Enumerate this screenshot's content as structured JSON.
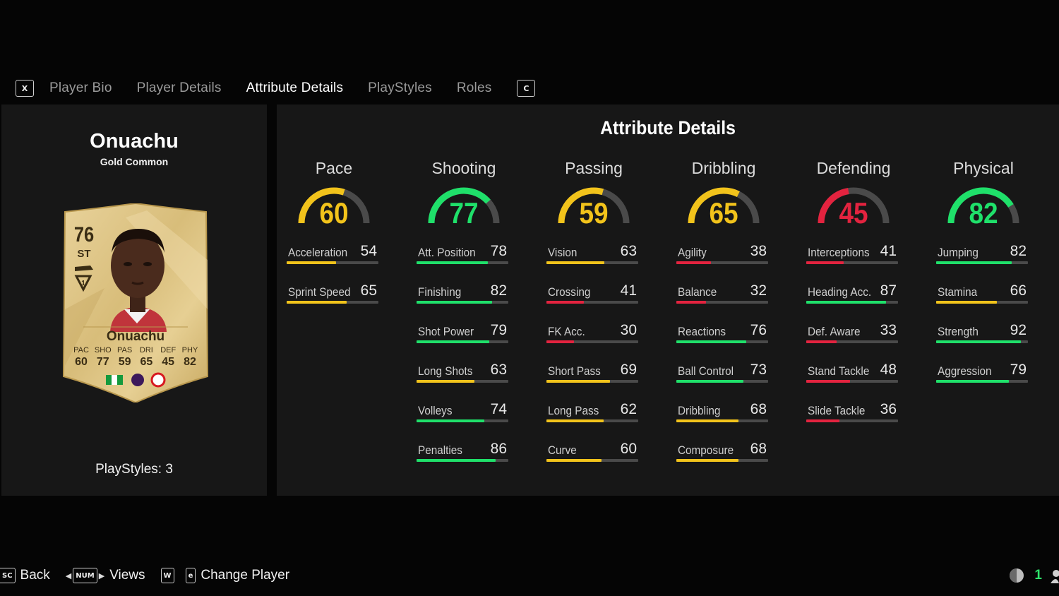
{
  "tabs": {
    "prev_key": "X",
    "next_key": "C",
    "items": [
      {
        "label": "Player Bio"
      },
      {
        "label": "Player Details"
      },
      {
        "label": "Attribute Details",
        "active": true
      },
      {
        "label": "PlayStyles"
      },
      {
        "label": "Roles"
      }
    ]
  },
  "player": {
    "name": "Onuachu",
    "rarity": "Gold Common",
    "playstyles_label": "PlayStyles: 3"
  },
  "card": {
    "rating": "76",
    "position": "ST",
    "name": "Onuachu",
    "stats": [
      {
        "label": "PAC",
        "value": "60"
      },
      {
        "label": "SHO",
        "value": "77"
      },
      {
        "label": "PAS",
        "value": "59"
      },
      {
        "label": "DRI",
        "value": "65"
      },
      {
        "label": "DEF",
        "value": "45"
      },
      {
        "label": "PHY",
        "value": "82"
      }
    ]
  },
  "attributes": {
    "title": "Attribute Details",
    "colors": {
      "green": "#1fe06a",
      "yellow": "#f2c31b",
      "red": "#e3233f",
      "track": "#4a4a4a"
    },
    "groups": [
      {
        "name": "Pace",
        "value": 60,
        "color": "yellow",
        "items": [
          {
            "name": "Acceleration",
            "value": 54,
            "color": "yellow"
          },
          {
            "name": "Sprint Speed",
            "value": 65,
            "color": "yellow"
          }
        ]
      },
      {
        "name": "Shooting",
        "value": 77,
        "color": "green",
        "items": [
          {
            "name": "Att. Position",
            "value": 78,
            "color": "green"
          },
          {
            "name": "Finishing",
            "value": 82,
            "color": "green"
          },
          {
            "name": "Shot Power",
            "value": 79,
            "color": "green"
          },
          {
            "name": "Long Shots",
            "value": 63,
            "color": "yellow"
          },
          {
            "name": "Volleys",
            "value": 74,
            "color": "green"
          },
          {
            "name": "Penalties",
            "value": 86,
            "color": "green"
          }
        ]
      },
      {
        "name": "Passing",
        "value": 59,
        "color": "yellow",
        "items": [
          {
            "name": "Vision",
            "value": 63,
            "color": "yellow"
          },
          {
            "name": "Crossing",
            "value": 41,
            "color": "red"
          },
          {
            "name": "FK Acc.",
            "value": 30,
            "color": "red"
          },
          {
            "name": "Short Pass",
            "value": 69,
            "color": "yellow"
          },
          {
            "name": "Long Pass",
            "value": 62,
            "color": "yellow"
          },
          {
            "name": "Curve",
            "value": 60,
            "color": "yellow"
          }
        ]
      },
      {
        "name": "Dribbling",
        "value": 65,
        "color": "yellow",
        "items": [
          {
            "name": "Agility",
            "value": 38,
            "color": "red"
          },
          {
            "name": "Balance",
            "value": 32,
            "color": "red"
          },
          {
            "name": "Reactions",
            "value": 76,
            "color": "green"
          },
          {
            "name": "Ball Control",
            "value": 73,
            "color": "green"
          },
          {
            "name": "Dribbling",
            "value": 68,
            "color": "yellow"
          },
          {
            "name": "Composure",
            "value": 68,
            "color": "yellow"
          }
        ]
      },
      {
        "name": "Defending",
        "value": 45,
        "color": "red",
        "items": [
          {
            "name": "Interceptions",
            "value": 41,
            "color": "red"
          },
          {
            "name": "Heading Acc.",
            "value": 87,
            "color": "green"
          },
          {
            "name": "Def. Aware",
            "value": 33,
            "color": "red"
          },
          {
            "name": "Stand Tackle",
            "value": 48,
            "color": "red"
          },
          {
            "name": "Slide Tackle",
            "value": 36,
            "color": "red"
          }
        ]
      },
      {
        "name": "Physical",
        "value": 82,
        "color": "green",
        "items": [
          {
            "name": "Jumping",
            "value": 82,
            "color": "green"
          },
          {
            "name": "Stamina",
            "value": 66,
            "color": "yellow"
          },
          {
            "name": "Strength",
            "value": 92,
            "color": "green"
          },
          {
            "name": "Aggression",
            "value": 79,
            "color": "green"
          }
        ]
      }
    ]
  },
  "footer": {
    "back_key": "SC",
    "back_label": "Back",
    "views_key": "NUM",
    "views_label": "Views",
    "w_key": "W",
    "change_key": "e",
    "change_label": "Change Player",
    "players_count": "1"
  }
}
